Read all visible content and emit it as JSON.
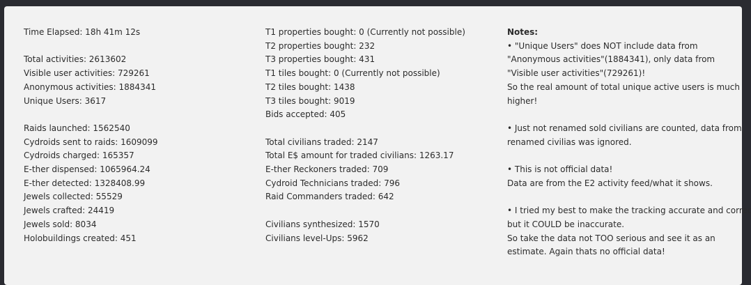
{
  "column1": {
    "time_elapsed": "Time Elapsed: 18h 41m 12s",
    "total_activities": "Total activities: 2613602",
    "visible_user_activities": "Visible user activities: 729261",
    "anonymous_activities": "Anonymous activities: 1884341",
    "unique_users": "Unique Users: 3617",
    "raids_launched": "Raids launched: 1562540",
    "cydroids_sent": "Cydroids sent to raids: 1609099",
    "cydroids_charged": "Cydroids charged: 165357",
    "ether_dispensed": "E-ther dispensed: 1065964.24",
    "ether_detected": "E-ther detected: 1328408.99",
    "jewels_collected": "Jewels collected: 55529",
    "jewels_crafted": "Jewels crafted: 24419",
    "jewels_sold": "Jewels sold: 8034",
    "holobuildings_created": "Holobuildings created: 451"
  },
  "column2": {
    "t1_properties": "T1 properties bought: 0 (Currently not possible)",
    "t2_properties": "T2 properties bought: 232",
    "t3_properties": "T3 properties bought: 431",
    "t1_tiles": "T1 tiles bought: 0 (Currently not possible)",
    "t2_tiles": "T2 tiles bought: 1438",
    "t3_tiles": "T3 tiles bought: 9019",
    "bids_accepted": "Bids accepted: 405",
    "total_civilians_traded": "Total civilians traded: 2147",
    "total_es_amount": "Total E$ amount for traded civilians: 1263.17",
    "ether_reckoners": "E-ther Reckoners traded: 709",
    "cydroid_technicians": "Cydroid Technicians traded: 796",
    "raid_commanders": "Raid Commanders traded: 642",
    "civilians_synthesized": "Civilians synthesized: 1570",
    "civilians_levelups": "Civilians level-Ups: 5962"
  },
  "notes": {
    "heading": "Notes:",
    "note1_a": "• \"Unique Users\" does NOT include data from",
    "note1_b": "\"Anonymous activities\"(1884341), only data from",
    "note1_c": "\"Visible user activities\"(729261)!",
    "note1_d": "So the real amount of total unique active users is much",
    "note1_e": "higher!",
    "note2_a": "• Just not renamed sold civilians are counted, data from",
    "note2_b": "renamed civilias was ignored.",
    "note3_a": "• This is not official data!",
    "note3_b": "Data are from the E2 activity feed/what it shows.",
    "note4_a": "• I tried my best to make the tracking accurate and correct",
    "note4_b": "but it COULD be inaccurate.",
    "note4_c": "So take the data not TOO serious and see it as an",
    "note4_d": "estimate. Again thats no official data!"
  }
}
